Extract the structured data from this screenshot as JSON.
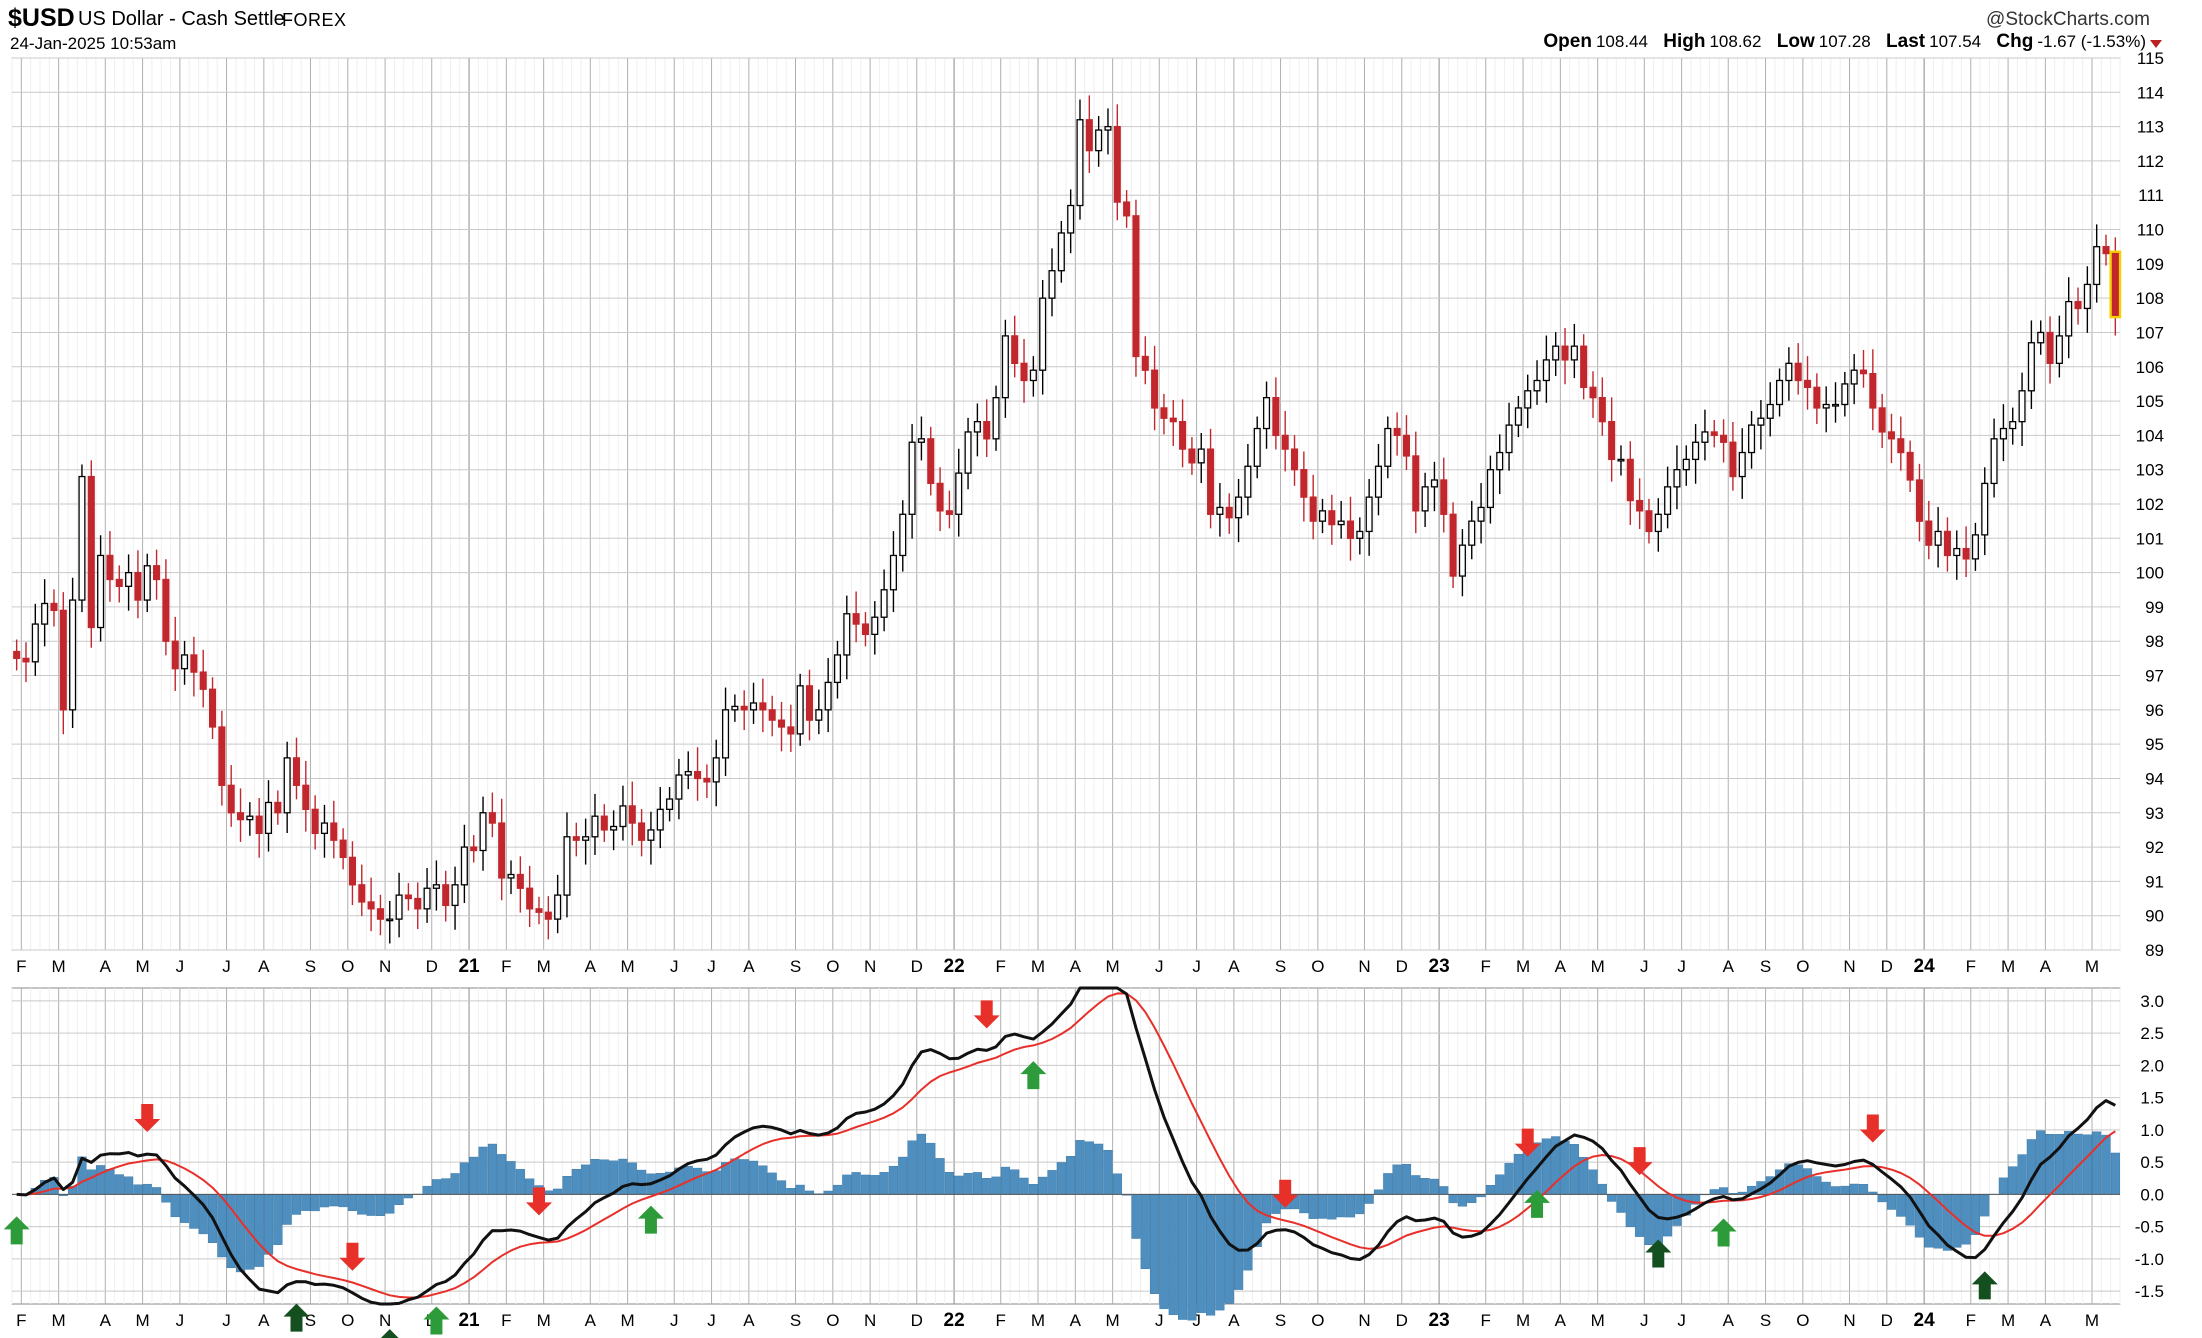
{
  "header": {
    "symbol": "$USD",
    "name": "US Dollar - Cash Settle",
    "exchange": "FOREX",
    "datetime": "24-Jan-2025 10:53am",
    "brand": "@StockCharts.com",
    "open_label": "Open",
    "open": "108.44",
    "high_label": "High",
    "high": "108.62",
    "low_label": "Low",
    "low": "107.28",
    "last_label": "Last",
    "last": "107.54",
    "chg_label": "Chg",
    "chg": "-1.67 (-1.53%)"
  },
  "colors": {
    "up_candle": "#000000",
    "down_candle": "#c1272d",
    "last_candle_highlight": "#f5d000",
    "macd_line": "#111111",
    "signal_line": "#e8302a",
    "histogram": "#4f8fc0",
    "buy_arrow": "#2e9b3a",
    "buy_arrow_dark": "#14501f",
    "sell_arrow": "#e8302a",
    "grid": "#c9c9c9"
  },
  "chart_data": [
    {
      "type": "candlestick",
      "title": "$USD US Dollar - Cash Settle FOREX",
      "frequency": "weekly",
      "ylim": [
        89,
        115
      ],
      "y_ticks": [
        "115",
        "114",
        "113",
        "112",
        "111",
        "110",
        "109",
        "108",
        "107",
        "106",
        "105",
        "104",
        "103",
        "102",
        "101",
        "100",
        "99",
        "98",
        "97",
        "96",
        "95",
        "94",
        "93",
        "92",
        "91",
        "90",
        "89"
      ],
      "x_tick_labels": [
        "F",
        "M",
        "A",
        "M",
        "J",
        "J",
        "A",
        "S",
        "O",
        "N",
        "D",
        "21",
        "F",
        "M",
        "A",
        "M",
        "J",
        "J",
        "A",
        "S",
        "O",
        "N",
        "D",
        "22",
        "F",
        "M",
        "A",
        "M",
        "J",
        "J",
        "A",
        "S",
        "O",
        "N",
        "D",
        "23",
        "F",
        "M",
        "A",
        "M",
        "J",
        "J",
        "A",
        "S",
        "O",
        "N",
        "D",
        "24",
        "F",
        "M",
        "A",
        "M",
        "J",
        "J",
        "A",
        "S",
        "O",
        "N",
        "D",
        "25"
      ],
      "x_start": "2020-01-27",
      "x_end": "2025-01-20",
      "closes_weekly": [
        97.5,
        97.4,
        98.5,
        99.1,
        98.9,
        96.0,
        99.2,
        102.8,
        98.4,
        100.5,
        99.8,
        99.6,
        100.0,
        99.2,
        100.2,
        99.8,
        98.0,
        97.2,
        97.6,
        97.1,
        96.6,
        95.5,
        93.8,
        93.0,
        92.8,
        92.9,
        92.4,
        93.3,
        93.0,
        94.6,
        93.8,
        93.1,
        92.4,
        92.7,
        92.2,
        91.7,
        90.9,
        90.4,
        90.2,
        89.9,
        89.9,
        90.6,
        90.5,
        90.2,
        90.8,
        90.9,
        90.3,
        90.9,
        92.0,
        91.9,
        93.0,
        92.7,
        91.1,
        91.2,
        90.8,
        90.2,
        90.1,
        89.9,
        90.6,
        92.3,
        92.2,
        92.3,
        92.9,
        92.5,
        92.6,
        93.2,
        92.7,
        92.2,
        92.5,
        93.1,
        93.4,
        94.1,
        94.2,
        94.0,
        93.9,
        94.6,
        96.0,
        96.1,
        96.0,
        96.2,
        96.0,
        95.7,
        95.5,
        95.3,
        96.7,
        95.7,
        96.0,
        96.8,
        97.6,
        98.8,
        98.5,
        98.2,
        98.7,
        99.5,
        100.5,
        101.7,
        103.8,
        103.9,
        102.6,
        101.8,
        101.7,
        102.9,
        104.1,
        104.4,
        103.9,
        105.1,
        106.9,
        106.1,
        105.6,
        105.9,
        108.0,
        108.8,
        109.9,
        110.7,
        113.2,
        112.3,
        112.9,
        113.0,
        110.8,
        110.4,
        106.3,
        105.9,
        104.8,
        104.5,
        104.4,
        103.6,
        103.2,
        103.6,
        101.7,
        101.9,
        101.6,
        102.2,
        103.1,
        104.2,
        105.1,
        104.0,
        103.6,
        103.0,
        102.2,
        101.5,
        101.8,
        101.4,
        101.5,
        101.0,
        101.2,
        102.2,
        103.1,
        104.2,
        104.0,
        103.4,
        101.8,
        102.5,
        102.7,
        101.7,
        99.9,
        100.8,
        101.5,
        101.9,
        103.0,
        103.5,
        104.3,
        104.8,
        105.3,
        105.6,
        106.2,
        106.6,
        106.2,
        106.6,
        105.4,
        105.1,
        104.4,
        103.3,
        103.3,
        102.1,
        101.8,
        101.2,
        101.7,
        102.5,
        103.0,
        103.3,
        103.8,
        104.1,
        104.0,
        103.8,
        102.8,
        103.5,
        104.3,
        104.5,
        104.9,
        105.6,
        106.1,
        105.6,
        105.4,
        104.8,
        104.9,
        104.9,
        105.5,
        105.9,
        105.8,
        104.8,
        104.1,
        103.9,
        103.5,
        102.7,
        101.5,
        100.8,
        101.2,
        100.5,
        100.7,
        100.4,
        101.1,
        102.6,
        103.9,
        104.2,
        104.4,
        105.3,
        106.7,
        107.0,
        106.1,
        106.9,
        107.9,
        107.7,
        108.4,
        109.5,
        109.3,
        107.5
      ]
    },
    {
      "type": "line",
      "title": "MACD",
      "ylim": [
        -1.7,
        3.2
      ],
      "y_ticks": [
        "3.0",
        "2.5",
        "2.0",
        "1.5",
        "1.0",
        "0.5",
        "0.0",
        "-0.5",
        "-1.0",
        "-1.5"
      ],
      "series": [
        {
          "name": "",
          "role": "macd"
        },
        {
          "name": "",
          "role": "signal"
        },
        {
          "name": "",
          "role": "histogram"
        }
      ],
      "x_tick_labels": [
        "F",
        "M",
        "A",
        "M",
        "J",
        "J",
        "A",
        "S",
        "O",
        "N",
        "D",
        "21",
        "F",
        "M",
        "A",
        "M",
        "J",
        "J",
        "A",
        "S",
        "O",
        "N",
        "D",
        "22",
        "F",
        "M",
        "A",
        "M",
        "J",
        "J",
        "A",
        "S",
        "O",
        "N",
        "D",
        "23",
        "F",
        "M",
        "A",
        "M",
        "J",
        "J",
        "A",
        "S",
        "O",
        "N",
        "D",
        "24",
        "F",
        "M",
        "A",
        "M",
        "J",
        "J",
        "A",
        "S",
        "O",
        "N",
        "D",
        "25"
      ],
      "buy_signal_weeks": [
        0,
        30,
        40,
        45,
        68,
        109,
        163,
        176,
        183,
        211,
        243
      ],
      "sell_signal_weeks": [
        14,
        36,
        56,
        104,
        136,
        162,
        174,
        199,
        242
      ],
      "buy_dark_weeks": [
        30,
        40,
        176,
        211,
        243
      ]
    }
  ]
}
